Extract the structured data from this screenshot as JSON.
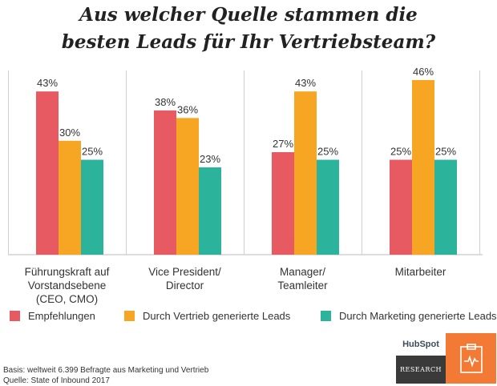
{
  "title_line1": "Aus welcher Quelle stammen die",
  "title_line2": "besten Leads für Ihr Vertriebsteam?",
  "chart_data": {
    "type": "bar",
    "categories": [
      [
        "Führungskraft auf",
        "Vorstandsebene",
        "(CEO, CMO)"
      ],
      [
        "Vice President/",
        "Director"
      ],
      [
        "Manager/",
        "Teamleiter"
      ],
      [
        "Mitarbeiter"
      ]
    ],
    "series": [
      {
        "name": "Empfehlungen",
        "values": [
          43,
          38,
          27,
          25
        ],
        "color": "#e85a62"
      },
      {
        "name": "Durch Vertrieb generierte Leads",
        "values": [
          30,
          36,
          43,
          46
        ],
        "color": "#f6a623"
      },
      {
        "name": "Durch Marketing generierte Leads",
        "values": [
          25,
          23,
          25,
          25
        ],
        "color": "#2bb39b"
      }
    ],
    "value_suffix": "%",
    "ylim": [
      0,
      50
    ],
    "grid": false,
    "legend": "bottom"
  },
  "footer": {
    "basis": "Basis: weltweit 6.399 Befragte aus Marketing und Vertrieb",
    "source": "Quelle: State of Inbound 2017"
  },
  "brand": {
    "logo_text": "HubSpot",
    "label": "RESEARCH",
    "icon": "clipboard-pulse-icon",
    "accent_color": "#f37a35"
  }
}
